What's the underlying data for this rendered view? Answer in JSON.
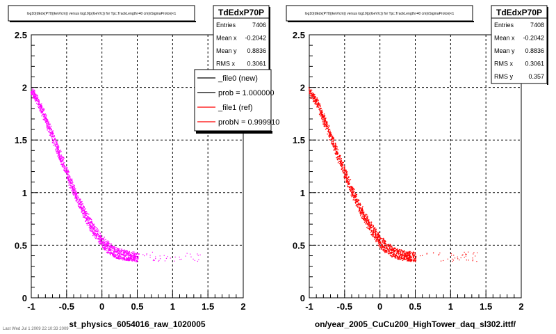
{
  "footer_text": "Last Wed Jul 1 2009 22:10:33 2009",
  "chart_data": [
    {
      "type": "scatter",
      "title": "log10(dEdx(P70)(keV/cm)) versus log10(p(GeV/c)) for Tpc.TrackLength>40 cm|nSigmaProton|<1",
      "xlabel": "st_physics_6054016_raw_1020005",
      "ylabel": "",
      "xlim": [
        -1,
        2
      ],
      "ylim": [
        0,
        2.5
      ],
      "xticks": [
        "-1",
        "-0.5",
        "0",
        "0.5",
        "1",
        "1.5",
        "2"
      ],
      "yticks": [
        "0",
        "0.5",
        "1",
        "1.5",
        "2",
        "2.5"
      ],
      "grid": true,
      "color": "#ff00ff",
      "band": {
        "x": [
          -1.0,
          -0.9,
          -0.8,
          -0.7,
          -0.6,
          -0.5,
          -0.4,
          -0.3,
          -0.2,
          -0.1,
          0.0,
          0.1,
          0.2,
          0.3,
          0.4,
          0.5
        ],
        "y": [
          1.97,
          1.86,
          1.7,
          1.53,
          1.36,
          1.18,
          1.02,
          0.87,
          0.74,
          0.63,
          0.54,
          0.47,
          0.43,
          0.41,
          0.4,
          0.39
        ]
      },
      "stats": {
        "name": "TdEdxP70P",
        "rows": [
          {
            "label": "Entries",
            "value": "7406"
          },
          {
            "label": "Mean x",
            "value": "-0.2042"
          },
          {
            "label": "Mean y",
            "value": "0.8836"
          },
          {
            "label": "RMS x",
            "value": "0.3061"
          }
        ]
      },
      "legend": {
        "position": "top-right",
        "entries": [
          {
            "label": "_file0 (new)",
            "color": "#000000"
          },
          {
            "label": "prob = 1.000000",
            "color": "#000000"
          },
          {
            "label": "_file1 (ref)",
            "color": "#ff0000"
          },
          {
            "label": "probN = 0.999910",
            "color": "#ff0000"
          }
        ]
      }
    },
    {
      "type": "scatter",
      "title": "log10(dEdx(P70)(keV/cm)) versus log10(p(GeV/c)) for Tpc.TrackLength>40 cm|nSigmaProton|<1",
      "xlabel": "on/year_2005_CuCu200_HighTower_daq_sl302.ittf/",
      "ylabel": "",
      "xlim": [
        -1,
        2
      ],
      "ylim": [
        0,
        2.5
      ],
      "xticks": [
        "-1",
        "-0.5",
        "0",
        "0.5",
        "1",
        "1.5",
        "2"
      ],
      "yticks": [
        "0",
        "0.5",
        "1",
        "1.5",
        "2",
        "2.5"
      ],
      "grid": true,
      "color": "#ff0000",
      "band": {
        "x": [
          -1.0,
          -0.9,
          -0.8,
          -0.7,
          -0.6,
          -0.5,
          -0.4,
          -0.3,
          -0.2,
          -0.1,
          0.0,
          0.1,
          0.2,
          0.3,
          0.4,
          0.5
        ],
        "y": [
          1.97,
          1.86,
          1.7,
          1.53,
          1.36,
          1.18,
          1.02,
          0.87,
          0.74,
          0.63,
          0.54,
          0.47,
          0.43,
          0.41,
          0.4,
          0.39
        ]
      },
      "stats": {
        "name": "TdEdxP70P",
        "rows": [
          {
            "label": "Entries",
            "value": "7408"
          },
          {
            "label": "Mean x",
            "value": "-0.2042"
          },
          {
            "label": "Mean y",
            "value": "0.8836"
          },
          {
            "label": "RMS x",
            "value": "0.3061"
          },
          {
            "label": "RMS y",
            "value": "0.357"
          }
        ]
      }
    }
  ]
}
